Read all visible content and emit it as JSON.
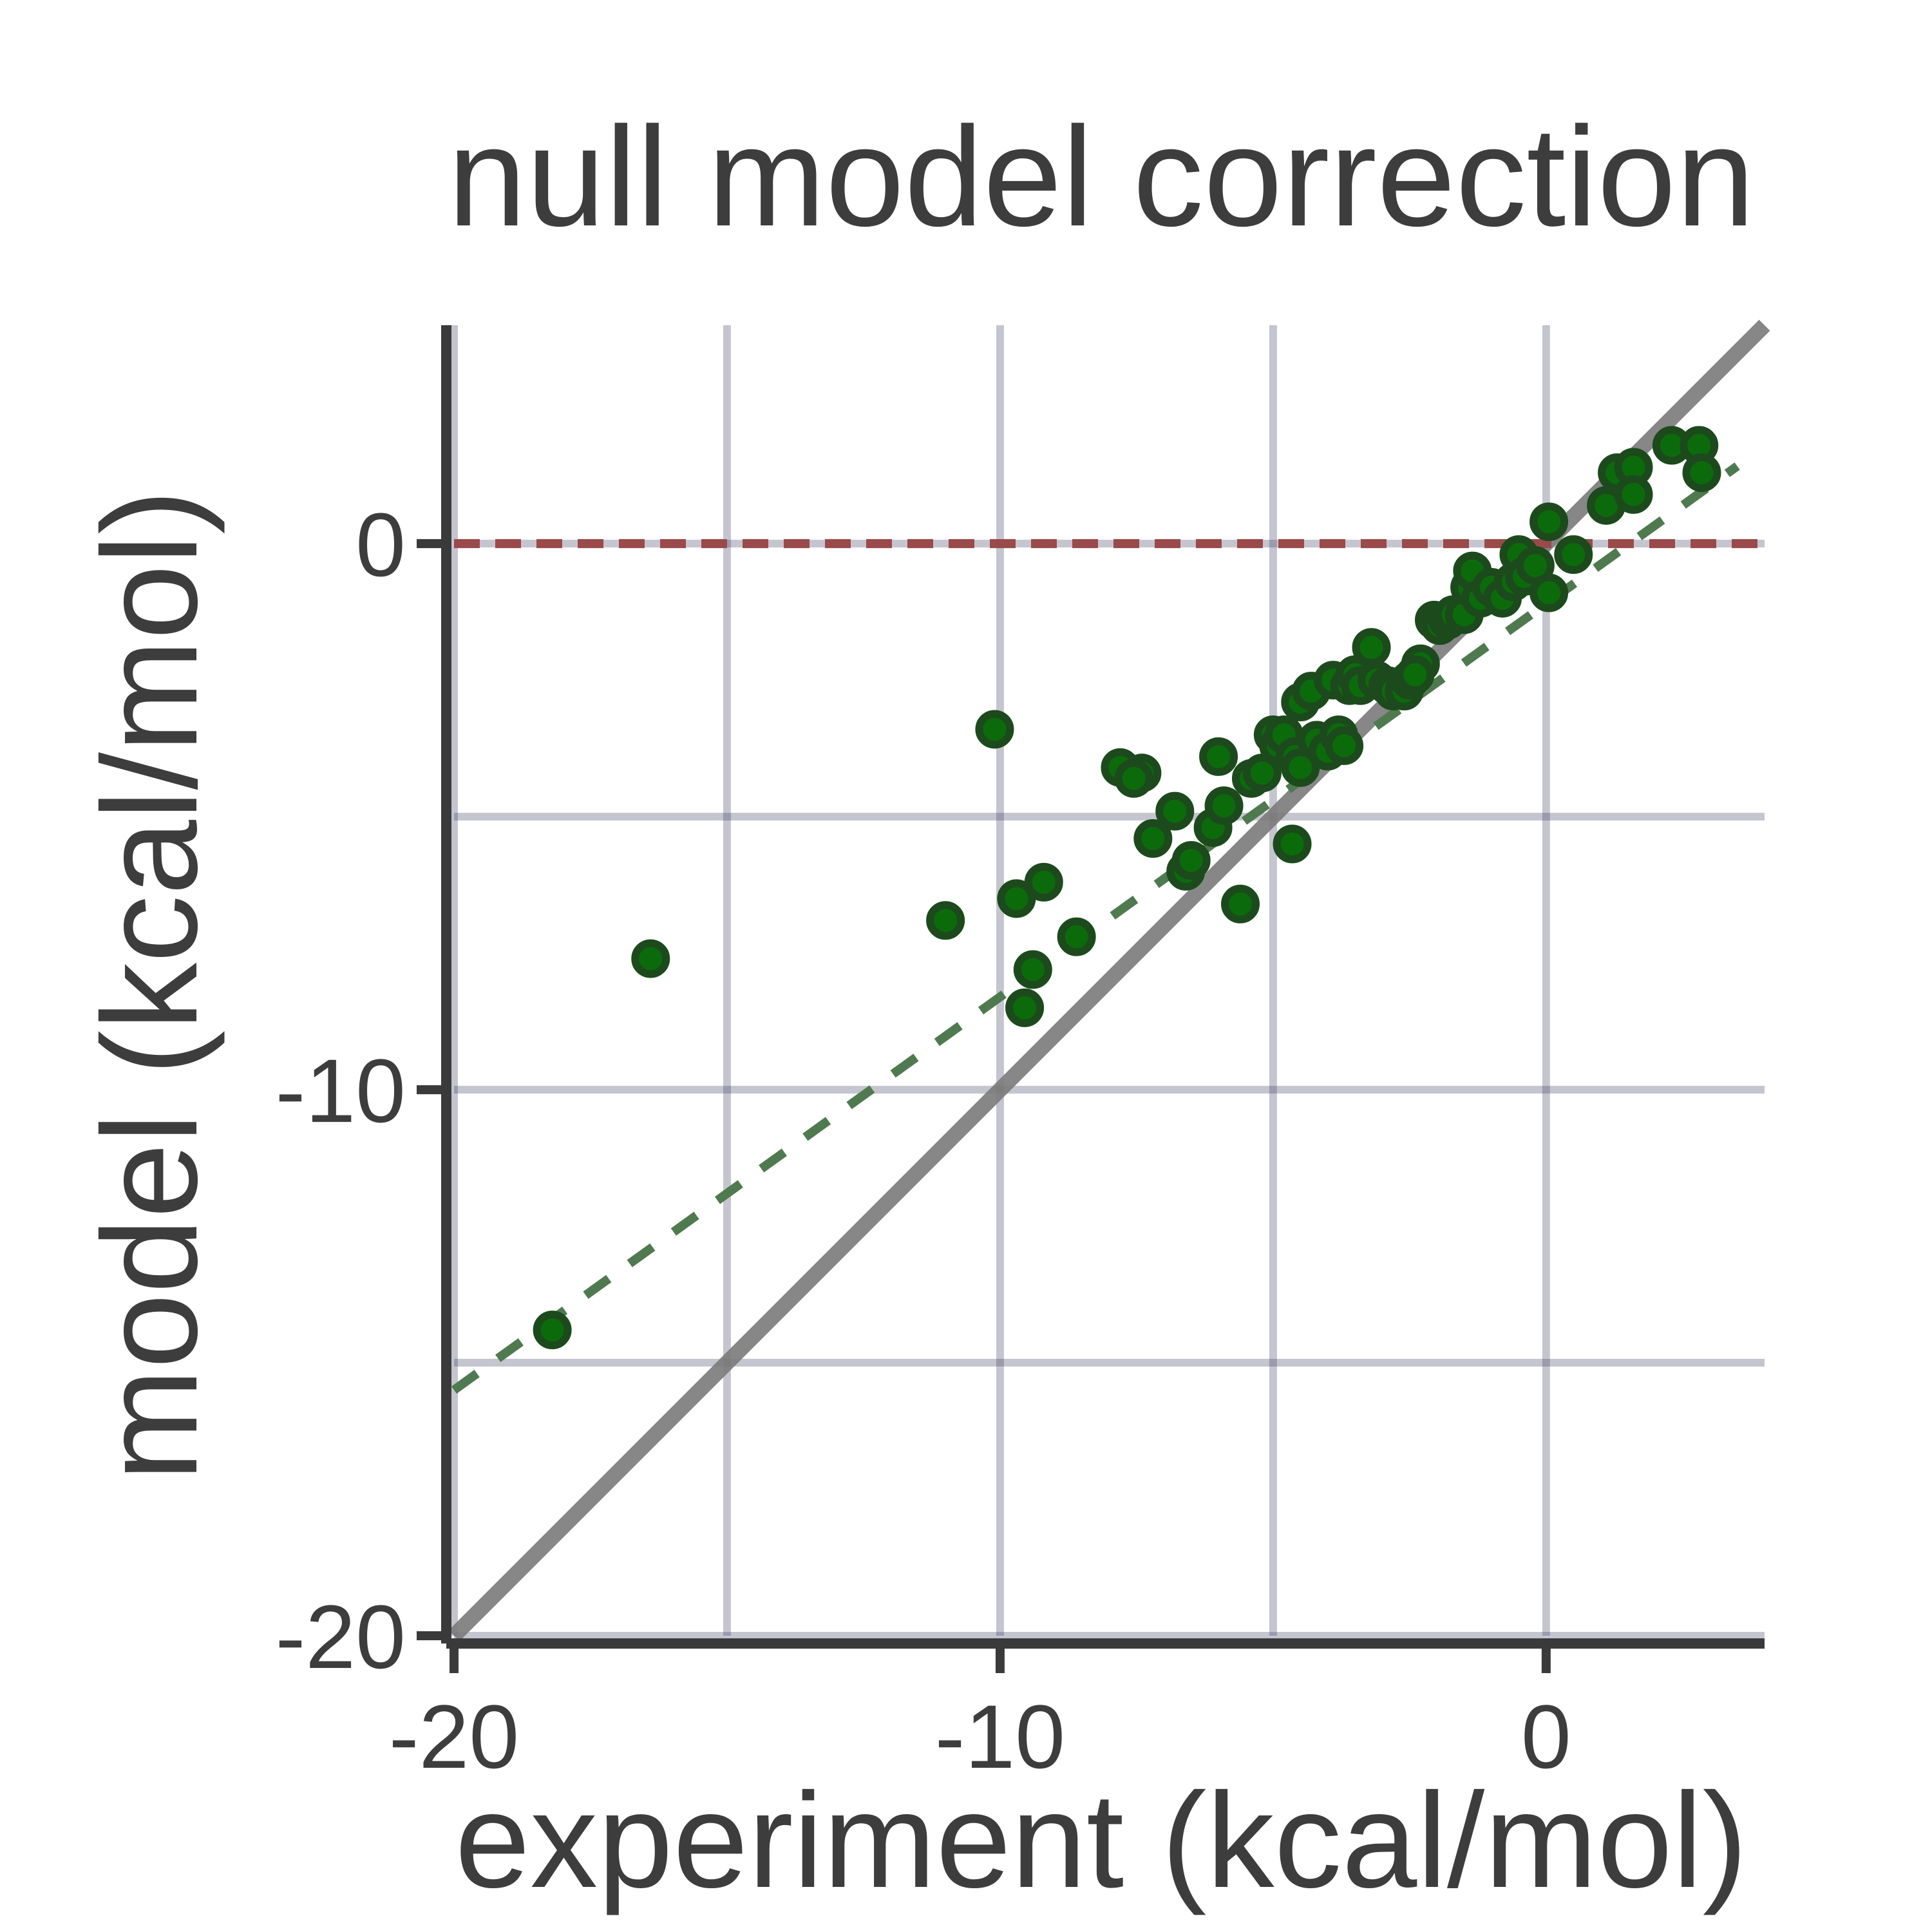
{
  "chart_data": {
    "type": "scatter",
    "title": "null model correction",
    "xlabel": "experiment (kcal/mol)",
    "ylabel": "model (kcal/mol)",
    "xlim": [
      -20,
      4
    ],
    "ylim": [
      -20,
      4
    ],
    "xticks": [
      -20,
      -10,
      0
    ],
    "xtick_labels": [
      "-20",
      "-10",
      "0"
    ],
    "yticks": [
      -20,
      -10,
      0
    ],
    "ytick_labels": [
      "-20",
      "-10",
      "0"
    ],
    "grid": true,
    "grid_step": 5,
    "reference_lines": [
      {
        "name": "identity",
        "kind": "y=x",
        "style": "solid",
        "color": "#7a7a7a"
      },
      {
        "name": "zero",
        "kind": "y=0",
        "style": "dashed",
        "color": "#9a4a4a"
      },
      {
        "name": "fit",
        "kind": "linear",
        "slope": 0.72,
        "intercept": -1.1,
        "x_range": [
          -20,
          3.5
        ],
        "style": "dashed",
        "color": "#4f7a4f"
      }
    ],
    "marker_color": "#0b6b0b",
    "marker_edge": "#1c4a1c",
    "series": [
      {
        "points": [
          [
            -18.2,
            -14.4
          ],
          [
            -16.4,
            -7.6
          ],
          [
            -10.1,
            -3.4
          ],
          [
            -11.0,
            -6.9
          ],
          [
            -9.7,
            -6.5
          ],
          [
            -9.2,
            -6.2
          ],
          [
            -9.4,
            -7.8
          ],
          [
            -9.55,
            -8.5
          ],
          [
            -8.6,
            -7.2
          ],
          [
            -7.8,
            -4.1
          ],
          [
            -7.4,
            -4.2
          ],
          [
            -7.55,
            -4.3
          ],
          [
            -7.2,
            -5.4
          ],
          [
            -6.8,
            -4.9
          ],
          [
            -6.6,
            -6.0
          ],
          [
            -6.5,
            -5.8
          ],
          [
            -6.0,
            -3.9
          ],
          [
            -6.1,
            -5.2
          ],
          [
            -5.9,
            -4.8
          ],
          [
            -5.6,
            -6.6
          ],
          [
            -5.4,
            -4.3
          ],
          [
            -5.2,
            -4.2
          ],
          [
            -5.0,
            -3.5
          ],
          [
            -4.9,
            -3.7
          ],
          [
            -4.8,
            -3.5
          ],
          [
            -4.6,
            -3.9
          ],
          [
            -4.5,
            -4.1
          ],
          [
            -4.65,
            -5.5
          ],
          [
            -4.5,
            -2.9
          ],
          [
            -4.3,
            -2.7
          ],
          [
            -4.2,
            -3.6
          ],
          [
            -4.0,
            -3.8
          ],
          [
            -3.8,
            -3.5
          ],
          [
            -3.7,
            -3.7
          ],
          [
            -3.9,
            -2.5
          ],
          [
            -3.6,
            -2.6
          ],
          [
            -3.5,
            -2.4
          ],
          [
            -3.4,
            -2.6
          ],
          [
            -3.2,
            -1.9
          ],
          [
            -3.1,
            -2.5
          ],
          [
            -2.9,
            -2.6
          ],
          [
            -2.8,
            -2.7
          ],
          [
            -2.6,
            -2.7
          ],
          [
            -2.5,
            -2.5
          ],
          [
            -2.3,
            -2.2
          ],
          [
            -2.4,
            -2.4
          ],
          [
            -2.05,
            -1.4
          ],
          [
            -1.95,
            -1.5
          ],
          [
            -1.8,
            -1.4
          ],
          [
            -1.7,
            -1.3
          ],
          [
            -1.5,
            -1.3
          ],
          [
            -1.4,
            -0.8
          ],
          [
            -1.35,
            -0.5
          ],
          [
            -1.2,
            -1.0
          ],
          [
            -1.0,
            -0.8
          ],
          [
            -0.8,
            -1.0
          ],
          [
            -0.6,
            -0.7
          ],
          [
            -0.5,
            -0.2
          ],
          [
            -0.4,
            -0.6
          ],
          [
            -0.2,
            -0.4
          ],
          [
            0.05,
            0.4
          ],
          [
            0.05,
            -0.9
          ],
          [
            0.5,
            -0.2
          ],
          [
            1.1,
            0.7
          ],
          [
            1.3,
            1.3
          ],
          [
            1.6,
            1.4
          ],
          [
            1.6,
            0.9
          ],
          [
            2.3,
            1.8
          ],
          [
            2.8,
            1.8
          ],
          [
            2.85,
            1.3
          ]
        ]
      }
    ]
  }
}
